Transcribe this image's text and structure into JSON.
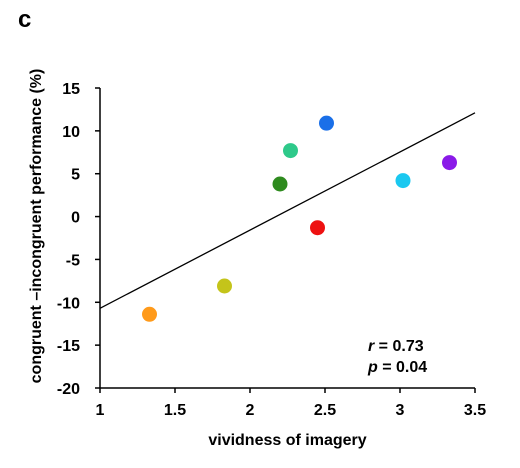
{
  "panel_label": "c",
  "chart_data": {
    "type": "scatter",
    "title": "",
    "xlabel": "vividness of imagery",
    "ylabel": "congruent –incongruent performance (%)",
    "xlim": [
      1,
      3.5
    ],
    "ylim": [
      -20,
      15
    ],
    "xticks": [
      1,
      1.5,
      2,
      2.5,
      3,
      3.5
    ],
    "xtick_labels": [
      "1",
      "1.5",
      "2",
      "2.5",
      "3",
      "3.5"
    ],
    "yticks": [
      -20,
      -15,
      -10,
      -5,
      0,
      5,
      10,
      15
    ],
    "ytick_labels": [
      "-20",
      "-15",
      "-10",
      "-5",
      "0",
      "5",
      "10",
      "15"
    ],
    "grid": false,
    "points": [
      {
        "x": 1.33,
        "y": -11.4,
        "color": "#ff9a1a"
      },
      {
        "x": 1.83,
        "y": -8.1,
        "color": "#c4c41a"
      },
      {
        "x": 2.2,
        "y": 3.8,
        "color": "#2e8b1e"
      },
      {
        "x": 2.27,
        "y": 7.7,
        "color": "#2ec98a"
      },
      {
        "x": 2.45,
        "y": -1.3,
        "color": "#ee1111"
      },
      {
        "x": 2.51,
        "y": 10.9,
        "color": "#1a6fe8"
      },
      {
        "x": 3.02,
        "y": 4.2,
        "color": "#1ac8f0"
      },
      {
        "x": 3.33,
        "y": 6.3,
        "color": "#8a1ae8"
      }
    ],
    "fit_line": {
      "x": [
        1,
        3.5
      ],
      "y": [
        -10.7,
        12.1
      ],
      "color": "#000000"
    },
    "annotation": {
      "r_symbol": "r",
      "r_value": " = 0.73",
      "p_symbol": "p",
      "p_value": " = 0.04"
    }
  }
}
